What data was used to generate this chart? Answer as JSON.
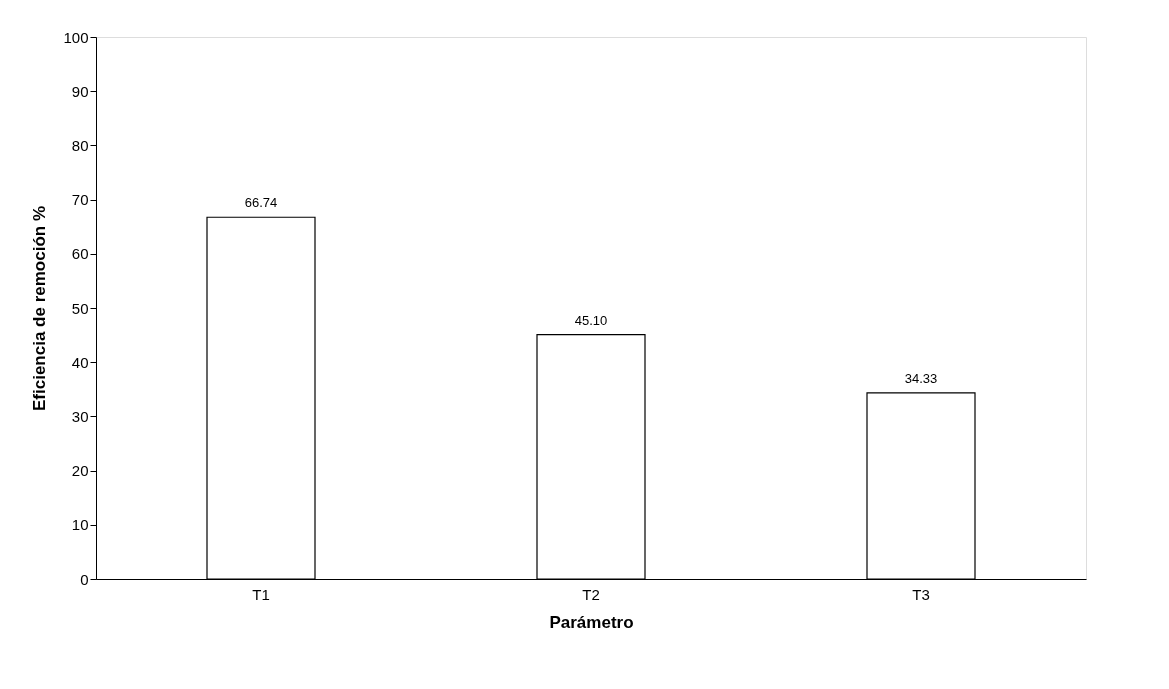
{
  "chart_data": {
    "type": "bar",
    "xlabel": "Parámetro",
    "ylabel": "Eficiencia de remoción %",
    "categories": [
      "T1",
      "T2",
      "T3"
    ],
    "values": [
      66.74,
      45.1,
      34.33
    ],
    "value_labels": [
      "66.74",
      "45.10",
      "34.33"
    ],
    "color": "#ffffff",
    "ylim": [
      0,
      100
    ],
    "yticks": [
      0,
      10,
      20,
      30,
      40,
      50,
      60,
      70,
      80,
      90,
      100
    ],
    "grid": false
  }
}
